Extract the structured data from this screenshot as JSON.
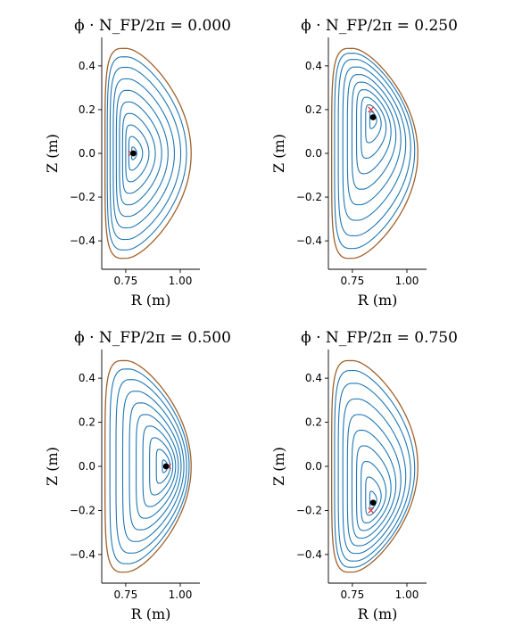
{
  "chart_data": [
    {
      "type": "line",
      "title": "ϕ · N_FP/2π = 0.000",
      "xlabel": "R (m)",
      "ylabel": "Z (m)",
      "xlim": [
        0.64,
        1.09
      ],
      "ylim": [
        -0.53,
        0.53
      ],
      "xticks": [
        0.75,
        1.0
      ],
      "yticks": [
        -0.4,
        -0.2,
        0.0,
        0.2,
        0.4
      ],
      "xtick_labels": [
        "0.75",
        "1.00"
      ],
      "ytick_labels": [
        "−0.4",
        "−0.2",
        "0.0",
        "0.2",
        "0.4"
      ],
      "magnetic_axis": [
        0.785,
        0.0
      ],
      "x_point_marker": [
        0.775,
        0.0
      ],
      "boundary": {
        "x_in": 0.655,
        "x_out": 1.05,
        "z_top": 0.48,
        "z_bottom": -0.48,
        "color": "#a0612a"
      },
      "surfaces_color": "#1f77b4",
      "surface_levels": [
        0.06,
        0.16,
        0.27,
        0.38,
        0.49,
        0.6,
        0.71,
        0.82,
        0.92
      ],
      "grid": false
    },
    {
      "type": "line",
      "title": "ϕ · N_FP/2π = 0.250",
      "xlabel": "R (m)",
      "ylabel": "Z (m)",
      "xlim": [
        0.64,
        1.09
      ],
      "ylim": [
        -0.53,
        0.53
      ],
      "xticks": [
        0.75,
        1.0
      ],
      "yticks": [
        -0.4,
        -0.2,
        0.0,
        0.2,
        0.4
      ],
      "xtick_labels": [
        "0.75",
        "1.00"
      ],
      "ytick_labels": [
        "−0.4",
        "−0.2",
        "0.0",
        "0.2",
        "0.4"
      ],
      "magnetic_axis": [
        0.845,
        0.165
      ],
      "x_point_marker": [
        0.835,
        0.2
      ],
      "boundary": {
        "x_in": 0.655,
        "x_out": 1.05,
        "z_top": 0.48,
        "z_bottom": -0.48,
        "color": "#a0612a"
      },
      "surfaces_color": "#1f77b4",
      "surface_levels": [
        0.08,
        0.18,
        0.29,
        0.4,
        0.51,
        0.62,
        0.73,
        0.84,
        0.93
      ],
      "grid": false
    },
    {
      "type": "line",
      "title": "ϕ · N_FP/2π = 0.500",
      "xlabel": "R (m)",
      "ylabel": "Z (m)",
      "xlim": [
        0.64,
        1.09
      ],
      "ylim": [
        -0.53,
        0.53
      ],
      "xticks": [
        0.75,
        1.0
      ],
      "yticks": [
        -0.4,
        -0.2,
        0.0,
        0.2,
        0.4
      ],
      "xtick_labels": [
        "0.75",
        "1.00"
      ],
      "ytick_labels": [
        "−0.4",
        "−0.2",
        "0.0",
        "0.2",
        "0.4"
      ],
      "magnetic_axis": [
        0.935,
        0.0
      ],
      "x_point_marker": [
        0.945,
        0.0
      ],
      "boundary": {
        "x_in": 0.655,
        "x_out": 1.05,
        "z_top": 0.48,
        "z_bottom": -0.48,
        "color": "#a0612a"
      },
      "surfaces_color": "#1f77b4",
      "surface_levels": [
        0.06,
        0.16,
        0.27,
        0.38,
        0.49,
        0.6,
        0.71,
        0.82,
        0.92
      ],
      "grid": false
    },
    {
      "type": "line",
      "title": "ϕ · N_FP/2π = 0.750",
      "xlabel": "R (m)",
      "ylabel": "Z (m)",
      "xlim": [
        0.64,
        1.09
      ],
      "ylim": [
        -0.53,
        0.53
      ],
      "xticks": [
        0.75,
        1.0
      ],
      "yticks": [
        -0.4,
        -0.2,
        0.0,
        0.2,
        0.4
      ],
      "xtick_labels": [
        "0.75",
        "1.00"
      ],
      "ytick_labels": [
        "−0.4",
        "−0.2",
        "0.0",
        "0.2",
        "0.4"
      ],
      "magnetic_axis": [
        0.845,
        -0.165
      ],
      "x_point_marker": [
        0.835,
        -0.2
      ],
      "boundary": {
        "x_in": 0.655,
        "x_out": 1.05,
        "z_top": 0.48,
        "z_bottom": -0.48,
        "color": "#a0612a"
      },
      "surfaces_color": "#1f77b4",
      "surface_levels": [
        0.08,
        0.18,
        0.29,
        0.4,
        0.51,
        0.62,
        0.73,
        0.84,
        0.93
      ],
      "grid": false
    }
  ]
}
